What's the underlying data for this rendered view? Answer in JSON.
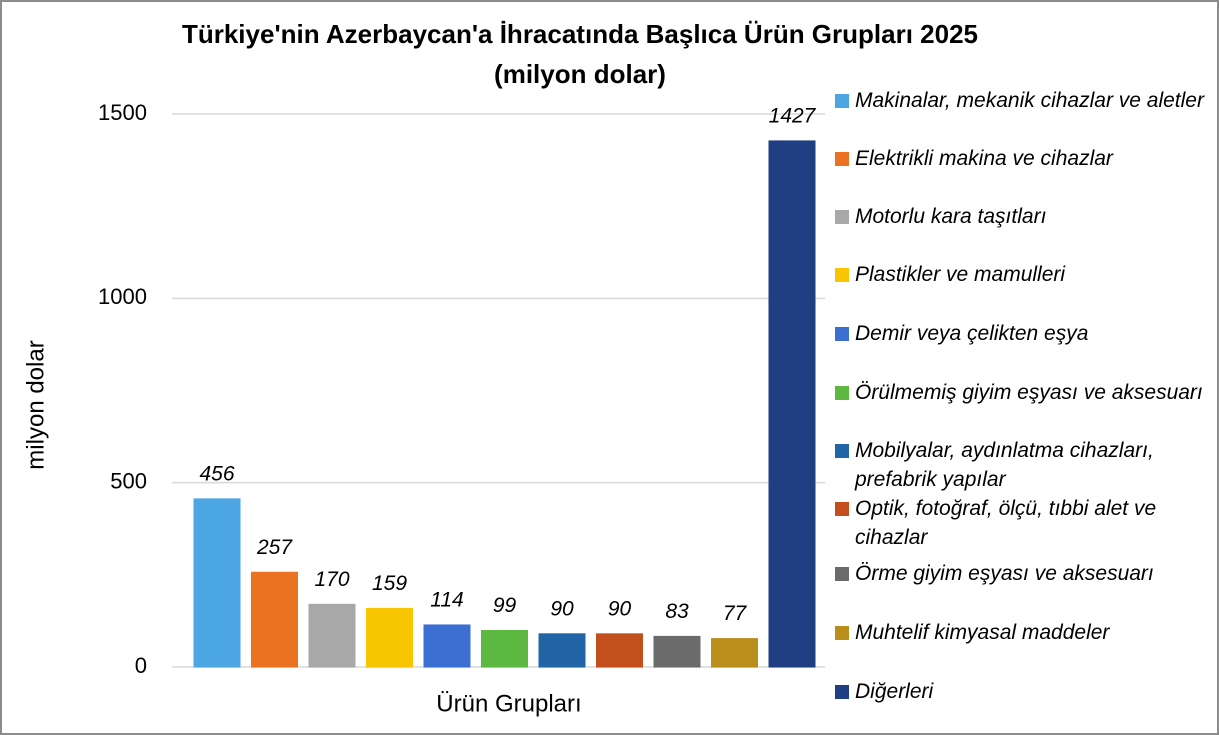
{
  "chart_data": {
    "type": "bar",
    "title": "Türkiye'nin Azerbaycan'a İhracatında Başlıca Ürün Grupları 2025",
    "subtitle": "(milyon dolar)",
    "x_label": "Ürün Grupları",
    "y_label": "milyon dolar",
    "categories": [
      "Ürün Grupları"
    ],
    "ylim": [
      0,
      1500
    ],
    "yticks": [
      0,
      500,
      1000,
      1500
    ],
    "grid": true,
    "legend": "right",
    "series": [
      {
        "name": "Makinalar, mekanik cihazlar ve aletler",
        "color": "#4ca6e2",
        "values": [
          456
        ]
      },
      {
        "name": "Elektrikli makina ve cihazlar",
        "color": "#ea7220",
        "values": [
          257
        ]
      },
      {
        "name": "Motorlu kara taşıtları",
        "color": "#a8a8a8",
        "values": [
          170
        ]
      },
      {
        "name": "Plastikler ve mamulleri",
        "color": "#f7c600",
        "values": [
          159
        ]
      },
      {
        "name": "Demir veya çelikten eşya",
        "color": "#3b6fd2",
        "values": [
          114
        ]
      },
      {
        "name": "Örülmemiş giyim eşyası ve aksesuarı",
        "color": "#5db842",
        "values": [
          99
        ]
      },
      {
        "name": "Mobilyalar, aydınlatma cihazları, prefabrik yapılar",
        "color": "#2265a6",
        "values": [
          90
        ]
      },
      {
        "name": "Optik, fotoğraf, ölçü, tıbbi alet ve cihazlar",
        "color": "#c3501c",
        "values": [
          90
        ]
      },
      {
        "name": "Örme giyim eşyası ve aksesuarı",
        "color": "#6b6b6b",
        "values": [
          83
        ]
      },
      {
        "name": "Muhtelif kimyasal maddeler",
        "color": "#b98e1a",
        "values": [
          77
        ]
      },
      {
        "name": "Diğerleri",
        "color": "#1f3f82",
        "values": [
          1427
        ]
      }
    ]
  }
}
